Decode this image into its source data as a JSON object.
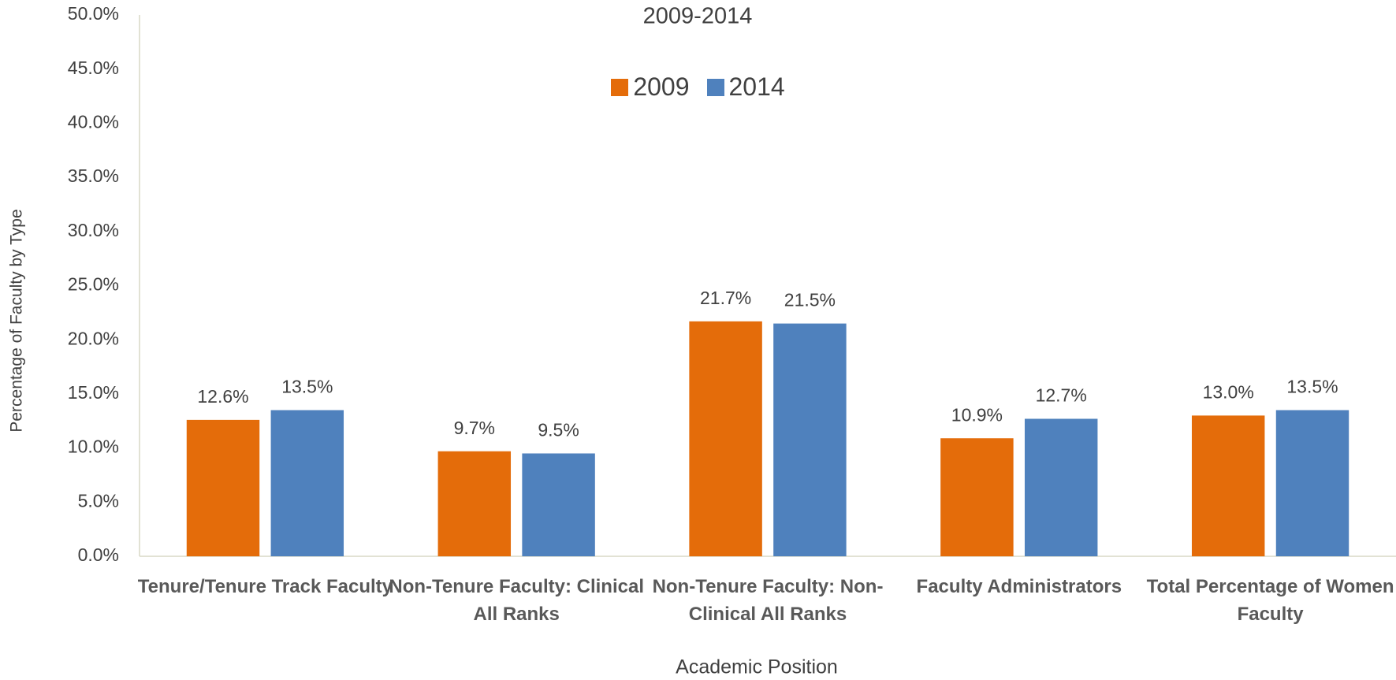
{
  "chart_data": {
    "type": "bar",
    "title": "2009-2014",
    "x_label": "Academic Position",
    "y_label": "Percentage of Faculty by Type",
    "categories": [
      "Tenure/Tenure Track Faculty",
      "Non-Tenure Faculty: Clinical All Ranks",
      "Non-Tenure Faculty: Non-Clinical All Ranks",
      "Faculty Administrators",
      "Total Percentage of Women Faculty"
    ],
    "series": [
      {
        "name": "2009",
        "color": "#e46c0a",
        "values": [
          12.6,
          9.7,
          21.7,
          10.9,
          13.0
        ],
        "value_labels": [
          "12.6%",
          "9.7%",
          "21.7%",
          "10.9%",
          "13.0%"
        ]
      },
      {
        "name": "2014",
        "color": "#4f81bd",
        "values": [
          13.5,
          9.5,
          21.5,
          12.7,
          13.5
        ],
        "value_labels": [
          "13.5%",
          "9.5%",
          "21.5%",
          "12.7%",
          "13.5%"
        ]
      }
    ],
    "ylim": [
      0,
      50
    ],
    "yticks": [
      {
        "value": 0,
        "label": "0.0%"
      },
      {
        "value": 5,
        "label": "5.0%"
      },
      {
        "value": 10,
        "label": "10.0%"
      },
      {
        "value": 15,
        "label": "15.0%"
      },
      {
        "value": 20,
        "label": "20.0%"
      },
      {
        "value": 25,
        "label": "25.0%"
      },
      {
        "value": 30,
        "label": "30.0%"
      },
      {
        "value": 35,
        "label": "35.0%"
      },
      {
        "value": 40,
        "label": "40.0%"
      },
      {
        "value": 45,
        "label": "45.0%"
      },
      {
        "value": 50,
        "label": "50.0%"
      }
    ],
    "legend": "top",
    "grid": false
  }
}
